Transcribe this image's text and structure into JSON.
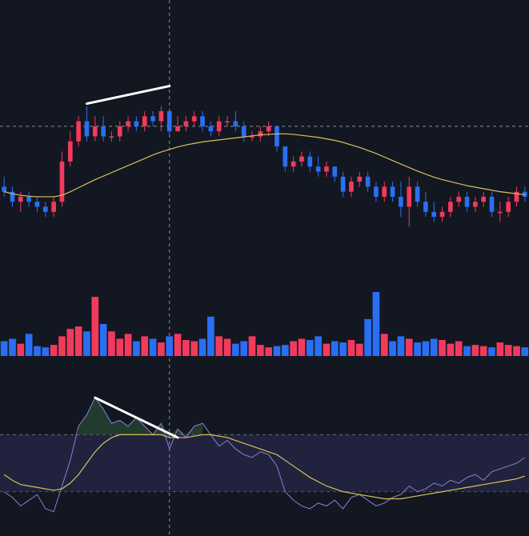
{
  "colors": {
    "background": "#131722",
    "up": "#f23a5d",
    "down": "#2a6ff3",
    "ma_line": "#d9c15a",
    "rsi_line": "#8a7fd6",
    "rsi_band": "#242442",
    "crosshair": "#8b8f99",
    "divergence_line": "#ffffff"
  },
  "chart_data": [
    {
      "type": "candlestick",
      "panel": "price",
      "title": "",
      "grid": false,
      "ylim": [
        56,
        101
      ],
      "candles": [
        [
          79,
          81,
          77,
          78
        ],
        [
          78,
          79,
          75,
          76
        ],
        [
          76,
          78,
          74,
          77
        ],
        [
          77,
          78,
          75,
          76
        ],
        [
          76,
          77,
          74,
          75
        ],
        [
          75,
          76,
          73,
          74
        ],
        [
          74,
          77,
          73,
          76
        ],
        [
          76,
          86,
          75,
          84
        ],
        [
          84,
          90,
          83,
          88
        ],
        [
          88,
          93,
          87,
          92
        ],
        [
          92,
          95,
          88,
          89
        ],
        [
          89,
          93,
          88,
          91
        ],
        [
          91,
          93,
          88,
          89
        ],
        [
          89,
          90,
          88,
          89
        ],
        [
          89,
          92,
          88,
          91
        ],
        [
          91,
          93,
          90,
          92
        ],
        [
          92,
          93,
          90,
          91
        ],
        [
          91,
          94,
          90,
          93
        ],
        [
          93,
          94,
          91,
          92
        ],
        [
          92,
          95,
          90,
          94
        ],
        [
          94,
          94,
          89,
          90
        ],
        [
          90,
          93,
          90,
          91
        ],
        [
          91,
          93,
          90,
          92
        ],
        [
          92,
          94,
          91,
          93
        ],
        [
          93,
          94,
          90,
          91
        ],
        [
          91,
          92,
          89,
          90
        ],
        [
          90,
          93,
          89,
          92
        ],
        [
          92,
          93,
          91,
          92
        ],
        [
          92,
          94,
          90,
          91
        ],
        [
          91,
          92,
          88,
          89
        ],
        [
          89,
          90,
          88,
          89
        ],
        [
          89,
          91,
          88,
          90
        ],
        [
          90,
          92,
          89,
          91
        ],
        [
          91,
          91,
          86,
          87
        ],
        [
          87,
          87,
          82,
          83
        ],
        [
          83,
          85,
          82,
          84
        ],
        [
          84,
          86,
          83,
          85
        ],
        [
          85,
          86,
          82,
          83
        ],
        [
          83,
          85,
          81,
          82
        ],
        [
          82,
          84,
          81,
          83
        ],
        [
          83,
          83,
          80,
          81
        ],
        [
          81,
          82,
          77,
          78
        ],
        [
          78,
          81,
          77,
          80
        ],
        [
          80,
          82,
          79,
          81
        ],
        [
          81,
          82,
          78,
          79
        ],
        [
          79,
          80,
          76,
          77
        ],
        [
          77,
          80,
          76,
          79
        ],
        [
          79,
          80,
          76,
          77
        ],
        [
          77,
          80,
          73,
          75
        ],
        [
          75,
          81,
          71,
          79
        ],
        [
          79,
          80,
          75,
          76
        ],
        [
          76,
          78,
          73,
          74
        ],
        [
          74,
          76,
          72,
          73
        ],
        [
          73,
          75,
          72,
          74
        ],
        [
          74,
          77,
          73,
          76
        ],
        [
          76,
          78,
          75,
          77
        ],
        [
          77,
          78,
          74,
          75
        ],
        [
          75,
          77,
          74,
          76
        ],
        [
          76,
          78,
          75,
          77
        ],
        [
          77,
          78,
          73,
          74
        ],
        [
          74,
          76,
          72,
          74
        ],
        [
          74,
          77,
          73,
          76
        ],
        [
          76,
          79,
          75,
          78
        ],
        [
          78,
          79,
          76,
          77
        ]
      ],
      "volumes": [
        12,
        14,
        10,
        18,
        8,
        7,
        9,
        16,
        22,
        24,
        20,
        48,
        26,
        20,
        14,
        18,
        12,
        16,
        14,
        11,
        16,
        18,
        13,
        12,
        14,
        32,
        16,
        14,
        10,
        12,
        16,
        9,
        7,
        8,
        9,
        12,
        14,
        13,
        16,
        10,
        12,
        11,
        13,
        10,
        30,
        52,
        18,
        12,
        16,
        14,
        11,
        12,
        14,
        13,
        10,
        12,
        8,
        9,
        8,
        7,
        11,
        9,
        8,
        7
      ]
    },
    {
      "type": "line",
      "panel": "price-overlay",
      "series": [
        {
          "name": "",
          "values": [
            78,
            77.6,
            77.3,
            77.1,
            77,
            77,
            77,
            77.3,
            78,
            78.8,
            79.6,
            80.4,
            81.1,
            81.8,
            82.5,
            83.2,
            83.9,
            84.6,
            85.3,
            85.9,
            86.4,
            86.9,
            87.3,
            87.6,
            87.9,
            88.1,
            88.3,
            88.5,
            88.7,
            88.9,
            89.1,
            89.3,
            89.4,
            89.5,
            89.5,
            89.4,
            89.2,
            89,
            88.8,
            88.5,
            88.2,
            87.8,
            87.3,
            86.8,
            86.2,
            85.6,
            84.9,
            84.2,
            83.5,
            82.8,
            82.1,
            81.5,
            80.9,
            80.4,
            80,
            79.6,
            79.2,
            78.9,
            78.6,
            78.3,
            78,
            77.8,
            77.6,
            77.4
          ]
        }
      ]
    },
    {
      "type": "line",
      "panel": "oscillator",
      "ylim": [
        0,
        100
      ],
      "band": [
        30,
        70
      ],
      "series": [
        {
          "name": "",
          "values": [
            30,
            26,
            20,
            24,
            28,
            18,
            16,
            34,
            52,
            76,
            84,
            96,
            88,
            78,
            80,
            76,
            82,
            76,
            70,
            78,
            60,
            74,
            68,
            76,
            78,
            70,
            62,
            66,
            60,
            56,
            54,
            58,
            56,
            48,
            30,
            24,
            20,
            18,
            22,
            20,
            24,
            18,
            26,
            28,
            24,
            20,
            22,
            26,
            28,
            34,
            30,
            32,
            36,
            34,
            38,
            36,
            40,
            42,
            38,
            44,
            46,
            48,
            50,
            54
          ]
        },
        {
          "name": "",
          "values": [
            42,
            38,
            35,
            34,
            33,
            32,
            31,
            32,
            36,
            42,
            50,
            58,
            64,
            68,
            70,
            70,
            70,
            70,
            70,
            70,
            68,
            68,
            68,
            69,
            70,
            70,
            69,
            68,
            66,
            64,
            62,
            60,
            58,
            56,
            52,
            48,
            44,
            40,
            37,
            34,
            32,
            30,
            29,
            28,
            27,
            26,
            25,
            25,
            25,
            26,
            27,
            28,
            29,
            30,
            31,
            32,
            33,
            34,
            35,
            36,
            37,
            38,
            39,
            41
          ]
        }
      ]
    }
  ]
}
